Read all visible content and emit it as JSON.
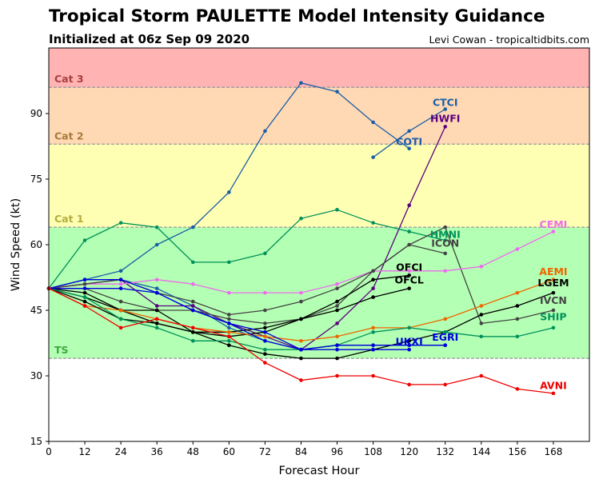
{
  "header": {
    "title": "Tropical Storm PAULETTE Model Intensity Guidance",
    "subtitle": "Initialized at 06z Sep 09 2020",
    "credit": "Levi Cowan - tropicaltidbits.com"
  },
  "chart_data": {
    "type": "line",
    "xlabel": "Forecast Hour",
    "ylabel": "Wind Speed (kt)",
    "xlim": [
      0,
      180
    ],
    "ylim": [
      15,
      105
    ],
    "xticks": [
      0,
      12,
      24,
      36,
      48,
      60,
      72,
      84,
      96,
      108,
      120,
      132,
      144,
      156,
      168
    ],
    "yticks": [
      15,
      30,
      45,
      60,
      75,
      90
    ],
    "grid": false,
    "bands": [
      {
        "label": "TS",
        "from": 34,
        "to": 64,
        "color": "#b3ffb3",
        "label_color": "#3fa83f"
      },
      {
        "label": "Cat 1",
        "from": 64,
        "to": 83,
        "color": "#ffffb3",
        "label_color": "#b3ad3f"
      },
      {
        "label": "Cat 2",
        "from": 83,
        "to": 96,
        "color": "#ffd9b3",
        "label_color": "#a87a3f"
      },
      {
        "label": "Cat 3",
        "from": 96,
        "to": 105,
        "color": "#ffb3b3",
        "label_color": "#a83f3f"
      }
    ],
    "series": [
      {
        "name": "CTCI",
        "color": "#1a5ea8",
        "x": [
          0,
          12,
          24,
          36,
          48,
          60,
          72,
          84,
          96,
          108,
          120,
          132
        ],
        "y": [
          50,
          52,
          52,
          50,
          46,
          41,
          38,
          36,
          37,
          37,
          37,
          37
        ]
      },
      {
        "name": "COTI",
        "color": "#1a5ea8",
        "x": [
          0,
          12,
          24,
          36,
          48,
          60,
          72,
          84,
          96,
          108,
          120
        ],
        "y": [
          50,
          52,
          54,
          60,
          64,
          72,
          86,
          97,
          95,
          88,
          82
        ]
      },
      {
        "name": "HWFI",
        "color": "#5a0080",
        "x": [
          0,
          12,
          24,
          36,
          48,
          60,
          72,
          84,
          96,
          108,
          120,
          132
        ],
        "y": [
          50,
          51,
          52,
          46,
          46,
          42,
          39,
          36,
          42,
          50,
          69,
          87
        ]
      },
      {
        "name": "HMNI",
        "color": "#00925a",
        "x": [
          0,
          12,
          24,
          36,
          48,
          60,
          72,
          84,
          96,
          108,
          120,
          132
        ],
        "y": [
          50,
          61,
          65,
          64,
          56,
          56,
          58,
          66,
          68,
          65,
          63,
          61
        ]
      },
      {
        "name": "ICON",
        "color": "#444444",
        "x": [
          0,
          12,
          24,
          36,
          48,
          60,
          72,
          84,
          96,
          108,
          120,
          132,
          144,
          156,
          168
        ],
        "y": [
          50,
          50,
          47,
          45,
          45,
          43,
          42,
          43,
          46,
          54,
          60,
          64,
          42,
          43,
          45
        ]
      },
      {
        "name": "CEMI",
        "color": "#ee6bee",
        "x": [
          0,
          12,
          24,
          36,
          48,
          60,
          72,
          84,
          96,
          108,
          120,
          132,
          144,
          156,
          168
        ],
        "y": [
          50,
          51,
          51,
          52,
          51,
          49,
          49,
          49,
          51,
          54,
          54,
          54,
          55,
          59,
          63
        ]
      },
      {
        "name": "OFCI",
        "color": "#000000",
        "x": [
          0,
          12,
          24,
          36,
          48,
          60,
          72,
          84,
          96,
          108,
          120
        ],
        "y": [
          50,
          48,
          45,
          45,
          40,
          40,
          41,
          43,
          47,
          52,
          53
        ]
      },
      {
        "name": "OFCL",
        "color": "#000000",
        "x": [
          0,
          12,
          24,
          36,
          48,
          60,
          72,
          84,
          96,
          108,
          120
        ],
        "y": [
          50,
          49,
          45,
          42,
          40,
          39,
          40,
          43,
          45,
          48,
          50
        ]
      },
      {
        "name": "AEMI",
        "color": "#ee6600",
        "x": [
          0,
          12,
          24,
          36,
          48,
          60,
          72,
          84,
          96,
          108,
          120,
          132,
          144,
          156,
          168
        ],
        "y": [
          50,
          46,
          45,
          43,
          41,
          40,
          39,
          38,
          39,
          41,
          41,
          43,
          46,
          49,
          52
        ]
      },
      {
        "name": "LGEM",
        "color": "#000000",
        "x": [
          0,
          12,
          24,
          36,
          48,
          60,
          72,
          84,
          96,
          108,
          120,
          132,
          144,
          156,
          168
        ],
        "y": [
          50,
          47,
          43,
          42,
          40,
          37,
          35,
          34,
          34,
          36,
          38,
          40,
          44,
          46,
          49
        ]
      },
      {
        "name": "IVCN",
        "color": "#444444",
        "x": [
          0,
          12,
          24,
          36,
          48,
          60,
          72,
          84,
          96,
          108,
          120,
          132
        ],
        "y": [
          50,
          51,
          52,
          49,
          47,
          44,
          45,
          47,
          50,
          54,
          60,
          58
        ]
      },
      {
        "name": "SHIP",
        "color": "#00925a",
        "x": [
          0,
          12,
          24,
          36,
          48,
          60,
          72,
          84,
          96,
          108,
          120,
          132,
          144,
          156,
          168
        ],
        "y": [
          50,
          48,
          43,
          41,
          38,
          38,
          36,
          36,
          37,
          40,
          41,
          40,
          39,
          39,
          41
        ]
      },
      {
        "name": "UKXI",
        "color": "#0000dd",
        "x": [
          0,
          12,
          24,
          36,
          48,
          60,
          72,
          84,
          96,
          108,
          120
        ],
        "y": [
          50,
          50,
          50,
          49,
          45,
          42,
          38,
          36,
          36,
          36,
          36
        ]
      },
      {
        "name": "EGRI",
        "color": "#0000dd",
        "x": [
          0,
          12,
          24,
          36,
          48,
          60,
          72,
          84,
          96,
          108,
          120,
          132
        ],
        "y": [
          50,
          52,
          52,
          49,
          45,
          42,
          40,
          36,
          37,
          37,
          37,
          37
        ]
      },
      {
        "name": "AVNI",
        "color": "#ee0000",
        "x": [
          0,
          12,
          24,
          36,
          48,
          60,
          72,
          84,
          96,
          108,
          120,
          132,
          144,
          156,
          168
        ],
        "y": [
          50,
          46,
          41,
          43,
          41,
          39,
          33,
          29,
          30,
          30,
          28,
          28,
          30,
          27,
          26
        ]
      },
      {
        "name": "CTCI",
        "color": "#1a5ea8",
        "x": [
          108,
          120,
          132
        ],
        "y": [
          80,
          86,
          91
        ]
      }
    ],
    "labels": [
      {
        "text": "CTCI",
        "color": "#1a5ea8",
        "x": 132,
        "y": 92.5
      },
      {
        "text": "HWFI",
        "color": "#5a0080",
        "x": 132,
        "y": 88.8
      },
      {
        "text": "COTI",
        "color": "#1a5ea8",
        "x": 120,
        "y": 83.5
      },
      {
        "text": "CEMI",
        "color": "#ee6bee",
        "x": 168,
        "y": 64.6
      },
      {
        "text": "HMNI",
        "color": "#00925a",
        "x": 132,
        "y": 62.3
      },
      {
        "text": "ICON",
        "color": "#444444",
        "x": 132,
        "y": 60.3
      },
      {
        "text": "OFCI",
        "color": "#000000",
        "x": 120,
        "y": 54.8
      },
      {
        "text": "AEMI",
        "color": "#ee6600",
        "x": 168,
        "y": 53.8
      },
      {
        "text": "OFCL",
        "color": "#000000",
        "x": 120,
        "y": 51.9
      },
      {
        "text": "LGEM",
        "color": "#000000",
        "x": 168,
        "y": 51.2
      },
      {
        "text": "IVCN",
        "color": "#444444",
        "x": 168,
        "y": 47.2
      },
      {
        "text": "SHIP",
        "color": "#00925a",
        "x": 168,
        "y": 43.4
      },
      {
        "text": "UKXI",
        "color": "#0000dd",
        "x": 120,
        "y": 37.8
      },
      {
        "text": "EGRI",
        "color": "#0000dd",
        "x": 132,
        "y": 38.8
      },
      {
        "text": "AVNI",
        "color": "#ee0000",
        "x": 168,
        "y": 27.7
      }
    ]
  }
}
